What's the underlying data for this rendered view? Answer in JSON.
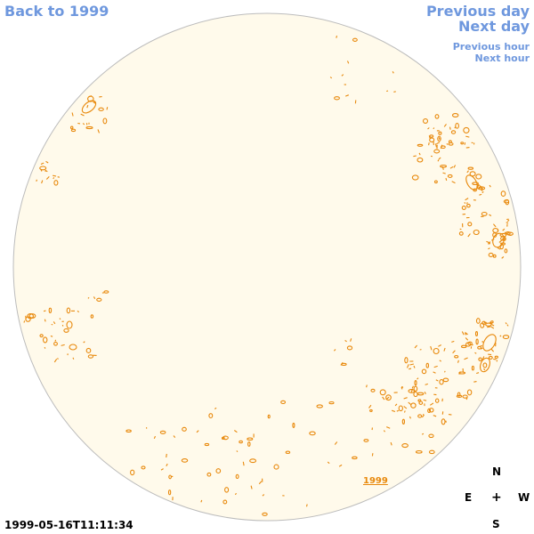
{
  "nav": {
    "back_label": "Back to 1999",
    "prev_day_label": "Previous day",
    "next_day_label": "Next day",
    "prev_hour_label": "Previous hour",
    "next_hour_label": "Next hour"
  },
  "disk": {
    "fill_color": "#fffaeb",
    "edge_color": "#bcbcbc",
    "contour_color": "#e8890c",
    "year_label": "1999"
  },
  "compass": {
    "north": "N",
    "south": "S",
    "east": "E",
    "west": "W",
    "center": "+"
  },
  "timestamp": "1999-05-16T11:11:34",
  "colors": {
    "link": "#6f98de",
    "text": "#000000"
  }
}
